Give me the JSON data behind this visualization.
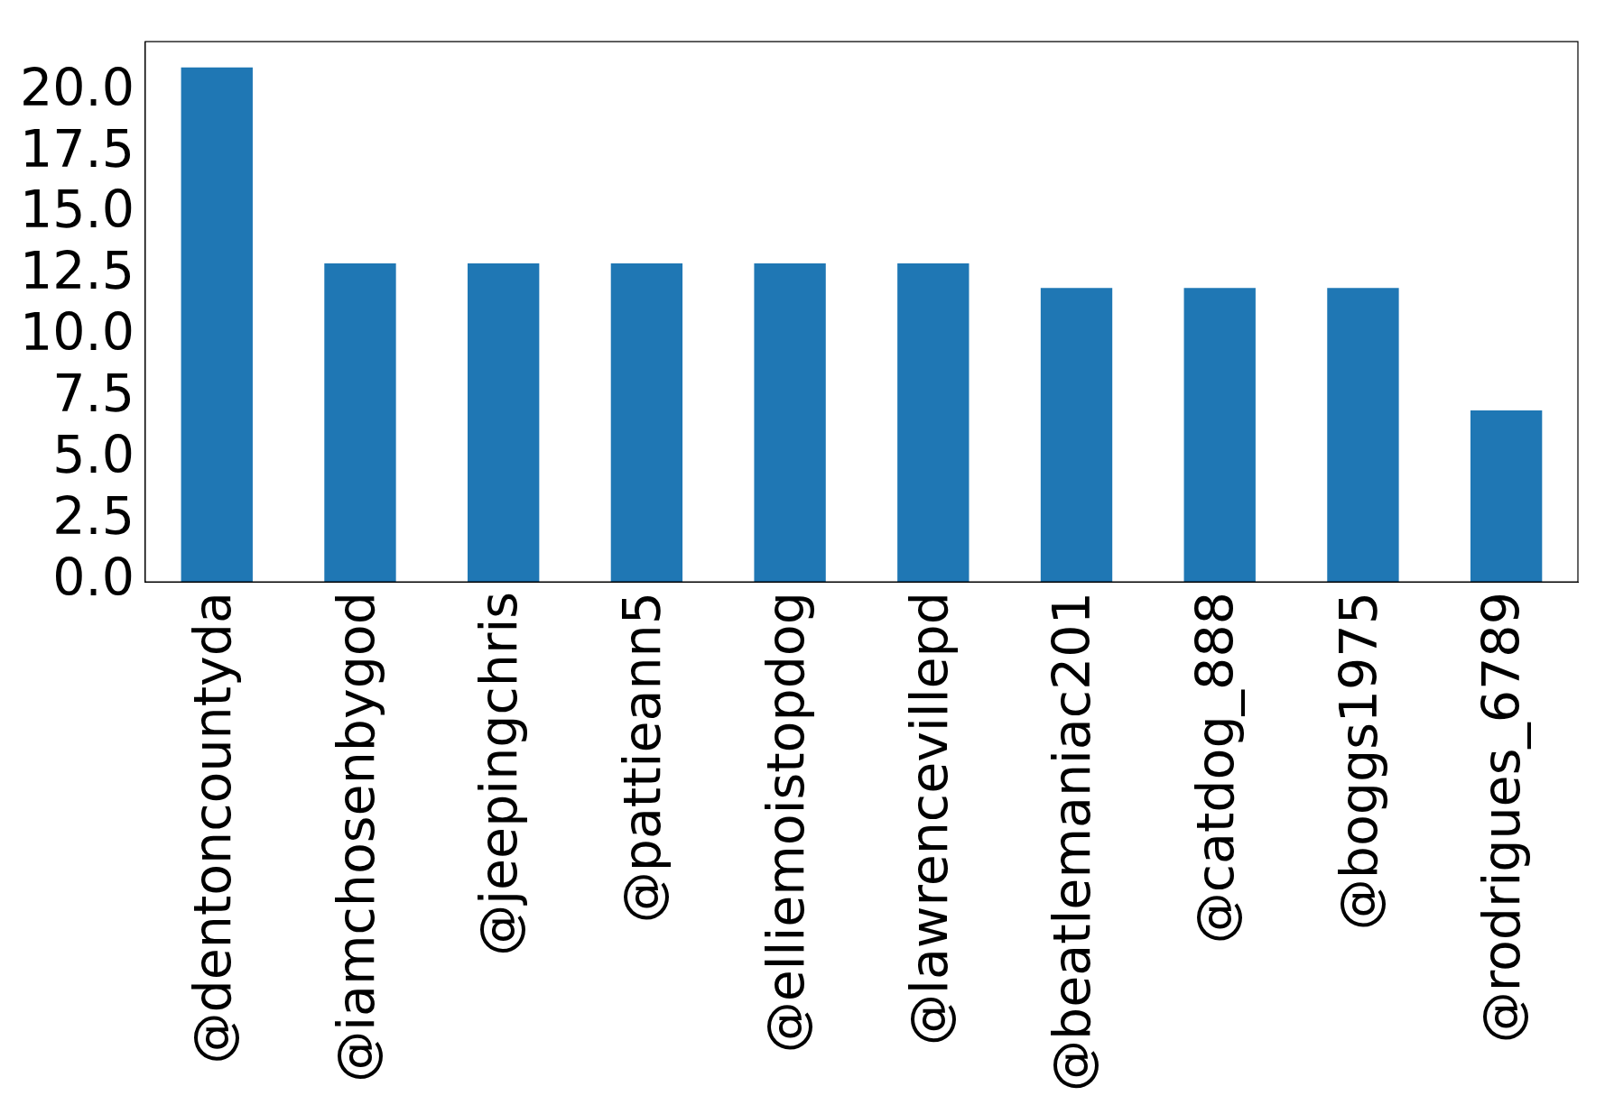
{
  "chart_data": {
    "type": "bar",
    "categories": [
      "@dentoncountyda",
      "@iamchosenbygod",
      "@jeepingchris",
      "@pattieann5",
      "@elliemoistopdog",
      "@lawrencevillepd",
      "@beatlemaniac201",
      "@catdog_888",
      "@boggs1975",
      "@rodrigues_6789"
    ],
    "values": [
      21,
      13,
      13,
      13,
      13,
      13,
      12,
      12,
      12,
      7
    ],
    "color": "#1f77b4",
    "ylim": [
      0,
      22.05
    ],
    "yticks": [
      {
        "value": 0,
        "label": "0.0"
      },
      {
        "value": 2.5,
        "label": "2.5"
      },
      {
        "value": 5,
        "label": "5.0"
      },
      {
        "value": 7.5,
        "label": "7.5"
      },
      {
        "value": 10,
        "label": "10.0"
      },
      {
        "value": 12.5,
        "label": "12.5"
      },
      {
        "value": 15,
        "label": "15.0"
      },
      {
        "value": 17.5,
        "label": "17.5"
      },
      {
        "value": 20,
        "label": "20.0"
      }
    ],
    "grid": false,
    "legend": false
  }
}
